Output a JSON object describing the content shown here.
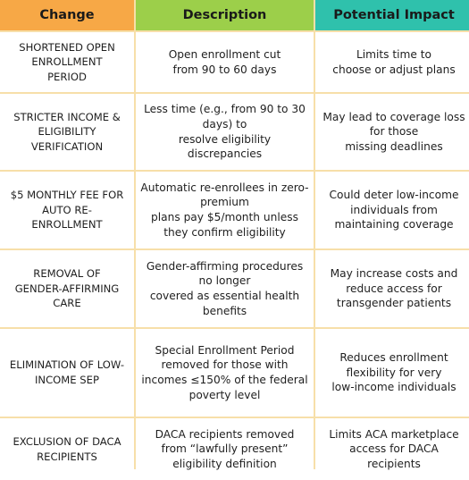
{
  "headers": {
    "change": "Change",
    "description": "Description",
    "impact": "Potential Impact"
  },
  "colors": {
    "change_header": "#f7a846",
    "description_header": "#9ccf4a",
    "impact_header": "#2fc1ac",
    "grid_lines": "#f7dfa9"
  },
  "rows": [
    {
      "change": "SHORTENED OPEN\nENROLLMENT\nPERIOD",
      "description": "Open enrollment cut\nfrom 90 to 60 days",
      "impact": "Limits time to\nchoose or adjust plans"
    },
    {
      "change": "STRICTER INCOME &\nELIGIBILITY\nVERIFICATION",
      "description": "Less time (e.g., from 90 to 30\ndays) to\nresolve eligibility\ndiscrepancies",
      "impact": "May lead to coverage loss\nfor those\nmissing deadlines"
    },
    {
      "change": "$5 MONTHLY FEE FOR\nAUTO RE-\nENROLLMENT",
      "description": "Automatic re-enrollees in zero-\npremium\nplans pay $5/month unless\nthey confirm eligibility",
      "impact": "Could deter low-income\nindividuals from\nmaintaining coverage"
    },
    {
      "change": "REMOVAL OF\nGENDER-AFFIRMING\nCARE",
      "description": "Gender-affirming procedures\nno longer\ncovered as essential health\nbenefits",
      "impact": "May increase costs and\nreduce access for\ntransgender patients"
    },
    {
      "change": "ELIMINATION OF LOW-\nINCOME SEP",
      "description": "Special Enrollment Period\nremoved for those with\nincomes ≤150% of the federal\npoverty level",
      "impact": "Reduces enrollment\nflexibility for very\nlow-income individuals"
    },
    {
      "change": "EXCLUSION OF DACA\nRECIPIENTS",
      "description": "DACA recipients removed\nfrom “lawfully present”\neligibility definition",
      "impact": "Limits ACA marketplace\naccess for DACA\nrecipients"
    }
  ]
}
